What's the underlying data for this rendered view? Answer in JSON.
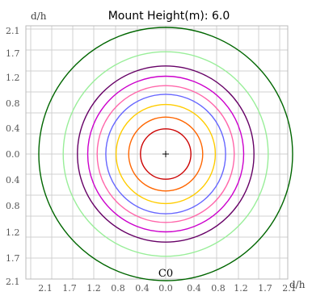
{
  "chart_data": {
    "type": "polar-contour",
    "title": "Mount Height(m): 6.0",
    "plane_label": "C0",
    "x_unit_label": "d/h",
    "y_unit_label": "d/h",
    "x_tick_labels": [
      "2.1",
      "1.7",
      "1.2",
      "0.8",
      "0.4",
      "0.0",
      "0.4",
      "0.8",
      "1.2",
      "1.7",
      "2.1"
    ],
    "y_tick_labels": [
      "2.1",
      "1.7",
      "1.2",
      "0.8",
      "0.4",
      "0.0",
      "0.4",
      "0.8",
      "1.2",
      "1.7",
      "2.1"
    ],
    "grid": true,
    "center_marker": "+",
    "contours": [
      {
        "color": "#cc0000",
        "radius": 0.32
      },
      {
        "color": "#ff6600",
        "radius": 0.47
      },
      {
        "color": "#ffcc00",
        "radius": 0.63
      },
      {
        "color": "#6666ff",
        "radius": 0.76
      },
      {
        "color": "#ff66aa",
        "radius": 0.87
      },
      {
        "color": "#cc00cc",
        "radius": 0.99
      },
      {
        "color": "#660066",
        "radius": 1.12
      },
      {
        "color": "#99ee99",
        "radius": 1.3
      },
      {
        "color": "#006600",
        "radius": 1.61
      }
    ]
  }
}
